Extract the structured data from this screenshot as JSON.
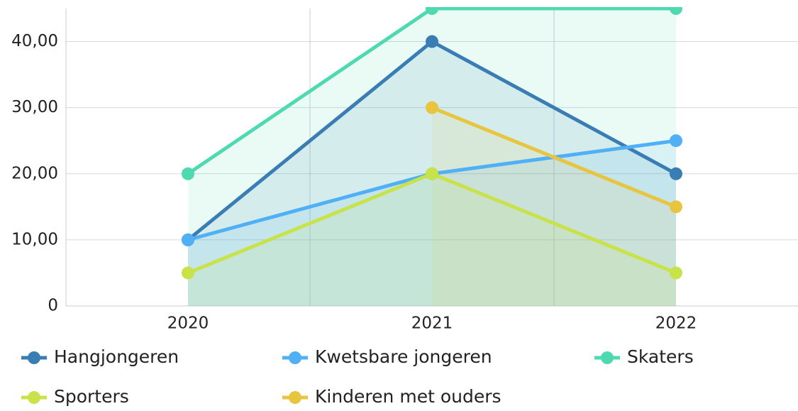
{
  "chart_data": {
    "type": "line",
    "categories": [
      "2020",
      "2021",
      "2022"
    ],
    "series": [
      {
        "name": "Hangjongeren",
        "color": "#3a7db5",
        "values": [
          10,
          40,
          20
        ]
      },
      {
        "name": "Kwetsbare jongeren",
        "color": "#4fb0f5",
        "values": [
          10,
          20,
          25
        ]
      },
      {
        "name": "Skaters",
        "color": "#4fd9b0",
        "values": [
          20,
          45,
          45
        ]
      },
      {
        "name": "Sporters",
        "color": "#c8e34a",
        "values": [
          5,
          20,
          5
        ]
      },
      {
        "name": "Kinderen met ouders",
        "color": "#e8c53e",
        "values": [
          null,
          30,
          15
        ]
      }
    ],
    "ylim": [
      0,
      45
    ],
    "yticks": [
      0,
      {
        "value": 10,
        "label": "10,00"
      },
      {
        "value": 20,
        "label": "20,00"
      },
      {
        "value": 30,
        "label": "30,00"
      },
      {
        "value": 40,
        "label": "40,00"
      }
    ],
    "grid": true,
    "area": true
  }
}
